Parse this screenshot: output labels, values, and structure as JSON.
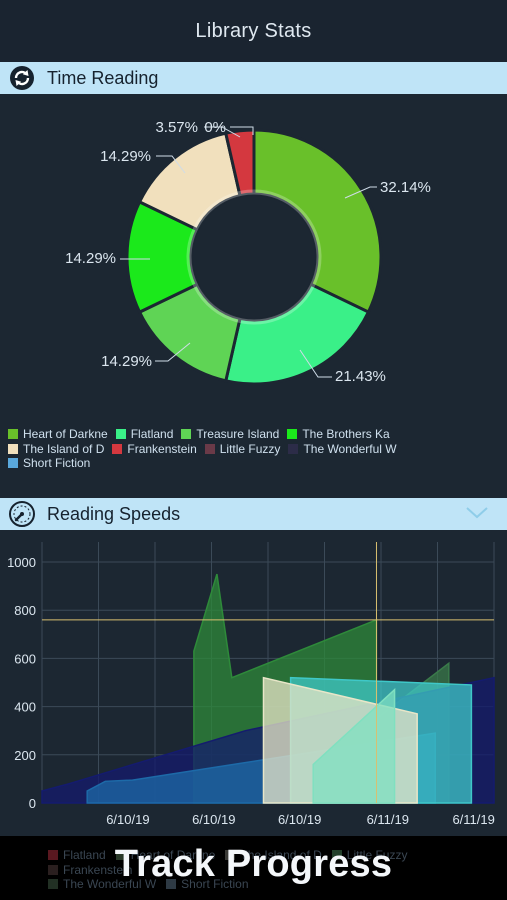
{
  "nav": {
    "title": "Library Stats"
  },
  "time_reading": {
    "title": "Time Reading",
    "icon": "refresh-icon"
  },
  "reading_speeds": {
    "title": "Reading Speeds",
    "icon": "speedometer-icon",
    "chevron": "chevron-down-icon"
  },
  "chart_data": [
    {
      "type": "pie",
      "title": "",
      "series": [
        {
          "name": "Heart of Darkne",
          "value": 32.14,
          "label": "32.14%",
          "color": "#69c02a"
        },
        {
          "name": "Flatland",
          "value": 21.43,
          "label": "21.43%",
          "color": "#3af088"
        },
        {
          "name": "Treasure Island",
          "value": 14.29,
          "label": "14.29%",
          "color": "#5fd455"
        },
        {
          "name": "The Brothers Ka",
          "value": 14.29,
          "label": "14.29%",
          "color": "#1be91b"
        },
        {
          "name": "The Island of D",
          "value": 14.29,
          "label": "14.29%",
          "color": "#f1e0bd"
        },
        {
          "name": "Frankenstein",
          "value": 3.57,
          "label": "3.57%",
          "color": "#d4383f"
        },
        {
          "name": "Little Fuzzy",
          "value": 0,
          "label": "0%",
          "color": "#6a3a48"
        },
        {
          "name": "The Wonderful W",
          "value": 0,
          "label": "",
          "color": "#2c2c48"
        },
        {
          "name": "Short Fiction",
          "value": 0,
          "label": "",
          "color": "#5aa8dc"
        }
      ]
    },
    {
      "type": "area",
      "title": "",
      "ylim": [
        0,
        1000
      ],
      "yticks": [
        "0",
        "200",
        "400",
        "600",
        "800",
        "1000"
      ],
      "xticks": [
        "6/10/19",
        "6/10/19",
        "6/10/19",
        "6/11/19",
        "6/11/19"
      ],
      "highlight": {
        "x": 0.74,
        "y": 760
      },
      "series": [
        {
          "name": "Heart of Darkne",
          "color": "#2e8a3a",
          "points": [
            [
              0.336,
              630
            ],
            [
              0.387,
              950
            ],
            [
              0.42,
              520
            ],
            [
              0.74,
              760
            ]
          ]
        },
        {
          "name": "The Brothers Ka",
          "color": "#3a7a4a",
          "points": [
            [
              0.6,
              150
            ],
            [
              0.9,
              580
            ]
          ]
        },
        {
          "name": "The Wonderful W",
          "color": "#141b6e",
          "points": [
            [
              0,
              50
            ],
            [
              0.06,
              80
            ],
            [
              0.45,
              300
            ],
            [
              1,
              520
            ]
          ]
        },
        {
          "name": "Short Fiction",
          "color": "#1d6aa8",
          "points": [
            [
              0.1,
              50
            ],
            [
              0.14,
              90
            ],
            [
              0.2,
              95
            ],
            [
              0.87,
              290
            ]
          ]
        },
        {
          "name": "Flatland",
          "color": "#3fc8c8",
          "points": [
            [
              0.55,
              520
            ],
            [
              0.95,
              490
            ]
          ]
        },
        {
          "name": "The Island of D",
          "color": "#e8e6c8",
          "points": [
            [
              0.49,
              520
            ],
            [
              0.83,
              370
            ]
          ]
        },
        {
          "name": "Treasure Island",
          "color": "#7fe0c0",
          "points": [
            [
              0.6,
              160
            ],
            [
              0.78,
              470
            ]
          ]
        }
      ]
    }
  ],
  "footer": {
    "tagline": "Track Progress",
    "legend": [
      {
        "name": "Flatland",
        "color": "#5a1820"
      },
      {
        "name": "Heart of Darkne",
        "color": "#2a3a2a"
      },
      {
        "name": "The Island of D",
        "color": "#3a3a36"
      },
      {
        "name": "Little Fuzzy",
        "color": "#22402a"
      },
      {
        "name": "Frankenstein",
        "color": "#2a1f1f"
      },
      {
        "name": "The Wonderful W",
        "color": "#223024"
      },
      {
        "name": "Short Fiction",
        "color": "#2e3a44"
      }
    ]
  }
}
